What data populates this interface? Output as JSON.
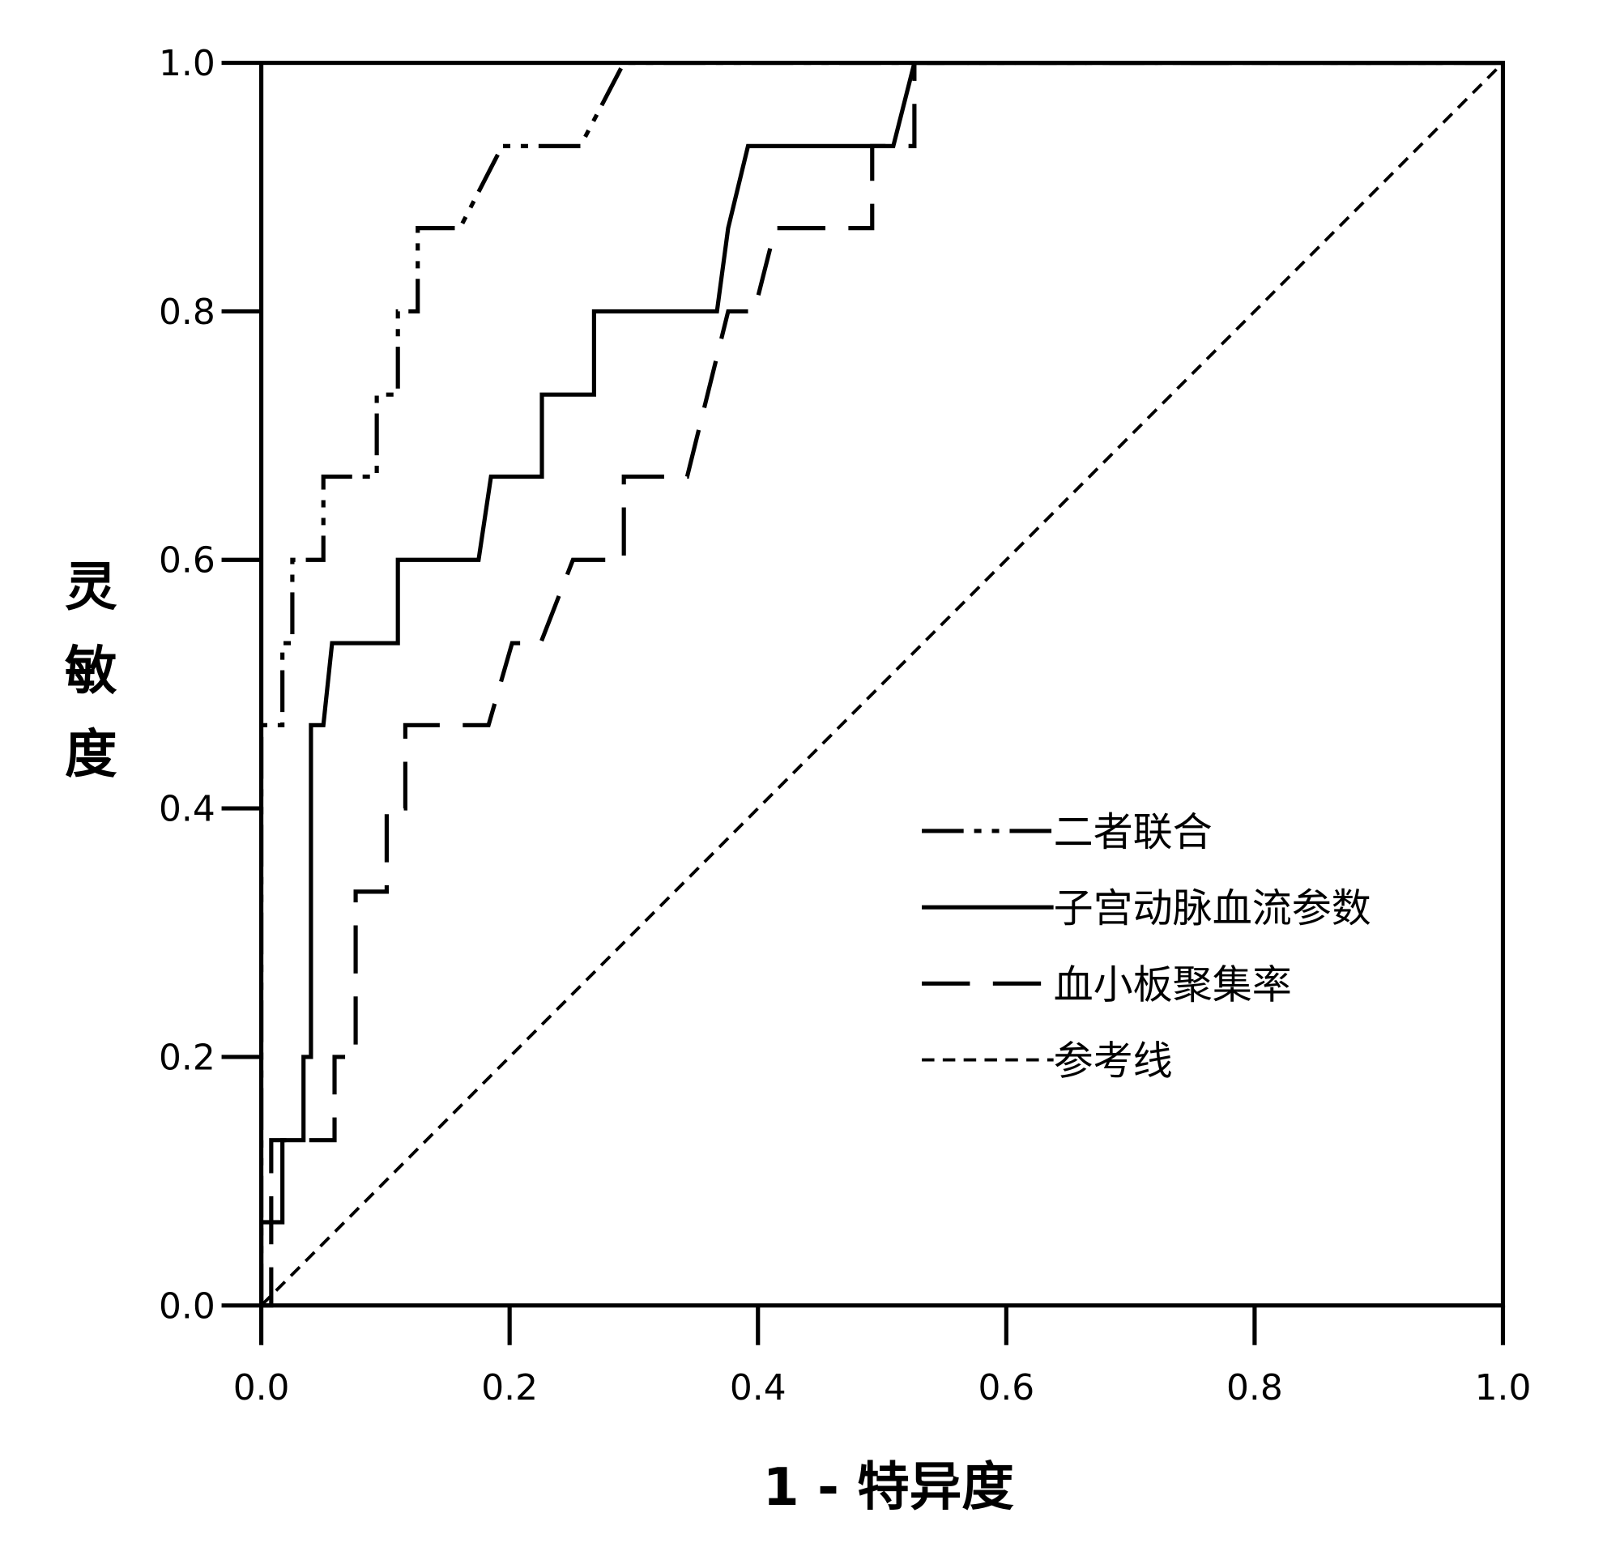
{
  "chart_data": {
    "type": "line",
    "title": "",
    "xlabel": "1 - 特异度",
    "ylabel": "灵敏度",
    "xlim": [
      0,
      1
    ],
    "ylim": [
      0,
      1
    ],
    "xticks": [
      "0.0",
      "0.2",
      "0.4",
      "0.6",
      "0.8",
      "1.0"
    ],
    "yticks": [
      "0.0",
      "0.2",
      "0.4",
      "0.6",
      "0.8",
      "1.0"
    ],
    "grid": false,
    "legend_position": "bottom-right",
    "series": [
      {
        "name": "二者联合",
        "style": "dash-dot-dot",
        "color": "#000000",
        "x": [
          0,
          0,
          0.017,
          0.017,
          0.025,
          0.025,
          0.05,
          0.05,
          0.093,
          0.093,
          0.11,
          0.11,
          0.126,
          0.126,
          0.16,
          0.194,
          0.257,
          0.292,
          1.0
        ],
        "y": [
          0,
          0.467,
          0.467,
          0.533,
          0.533,
          0.6,
          0.6,
          0.667,
          0.667,
          0.733,
          0.733,
          0.8,
          0.8,
          0.867,
          0.867,
          0.933,
          0.933,
          1.0,
          1.0
        ]
      },
      {
        "name": "子宫动脉血流参数",
        "style": "solid",
        "color": "#000000",
        "x": [
          0,
          0,
          0.017,
          0.017,
          0.034,
          0.034,
          0.04,
          0.04,
          0.05,
          0.057,
          0.11,
          0.11,
          0.175,
          0.185,
          0.226,
          0.226,
          0.268,
          0.268,
          0.367,
          0.376,
          0.392,
          0.509,
          0.526,
          1.0
        ],
        "y": [
          0,
          0.067,
          0.067,
          0.133,
          0.133,
          0.2,
          0.2,
          0.467,
          0.467,
          0.533,
          0.533,
          0.6,
          0.6,
          0.667,
          0.667,
          0.733,
          0.733,
          0.8,
          0.8,
          0.867,
          0.933,
          0.933,
          1.0,
          1.0
        ]
      },
      {
        "name": "血小板聚集率",
        "style": "long-dash",
        "color": "#000000",
        "x": [
          0,
          0.008,
          0.008,
          0.059,
          0.059,
          0.076,
          0.076,
          0.101,
          0.101,
          0.116,
          0.116,
          0.183,
          0.202,
          0.225,
          0.251,
          0.292,
          0.292,
          0.343,
          0.376,
          0.397,
          0.414,
          0.492,
          0.492,
          0.526,
          0.526,
          1.0
        ],
        "y": [
          0,
          0,
          0.133,
          0.133,
          0.2,
          0.2,
          0.333,
          0.333,
          0.4,
          0.4,
          0.467,
          0.467,
          0.533,
          0.533,
          0.6,
          0.6,
          0.667,
          0.667,
          0.8,
          0.8,
          0.867,
          0.867,
          0.933,
          0.933,
          1.0,
          1.0
        ]
      },
      {
        "name": "参考线",
        "style": "short-dash",
        "color": "#000000",
        "x": [
          0,
          1
        ],
        "y": [
          0,
          1
        ]
      }
    ]
  }
}
